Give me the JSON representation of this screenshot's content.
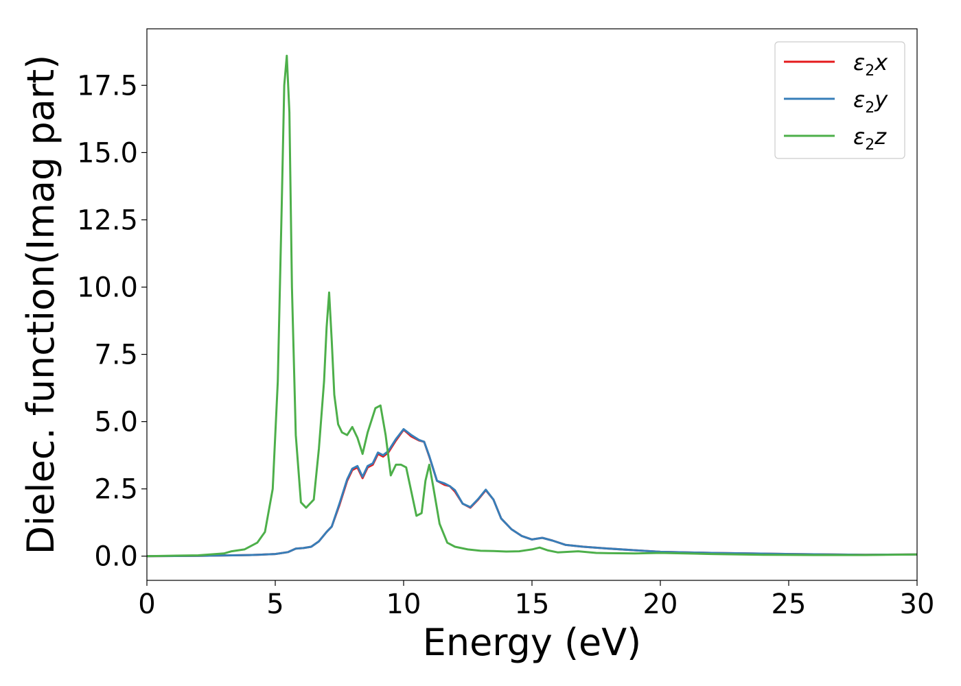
{
  "chart_data": {
    "type": "line",
    "title": "",
    "xlabel": "Energy (eV)",
    "ylabel": "Dielec. function(Imag part)",
    "xlim": [
      0,
      30
    ],
    "ylim": [
      -0.9,
      19.6
    ],
    "xticks": [
      0,
      5,
      10,
      15,
      20,
      25,
      30
    ],
    "xtick_labels": [
      "0",
      "5",
      "10",
      "15",
      "20",
      "25",
      "30"
    ],
    "yticks": [
      0,
      2.5,
      5,
      7.5,
      10,
      12.5,
      15,
      17.5
    ],
    "ytick_labels": [
      "0.0",
      "2.5",
      "5.0",
      "7.5",
      "10.0",
      "12.5",
      "15.0",
      "17.5"
    ],
    "grid": false,
    "legend_position": "upper right",
    "series": [
      {
        "name": "ε2x",
        "legend_base": "ε",
        "legend_sub": "2",
        "legend_suffix": "x",
        "color": "#e41a1c",
        "x": [
          0,
          2,
          4,
          4.6,
          5,
          5.5,
          5.8,
          6.1,
          6.4,
          6.7,
          7,
          7.2,
          7.5,
          7.8,
          8,
          8.2,
          8.4,
          8.6,
          8.8,
          9,
          9.2,
          9.4,
          9.7,
          10,
          10.3,
          10.6,
          10.8,
          11,
          11.3,
          11.6,
          11.8,
          12,
          12.3,
          12.6,
          12.9,
          13.2,
          13.5,
          13.8,
          14.2,
          14.6,
          15,
          15.4,
          15.8,
          16.3,
          17,
          18,
          19,
          20,
          22,
          25,
          28,
          30
        ],
        "y": [
          0,
          0.01,
          0.04,
          0.06,
          0.08,
          0.15,
          0.28,
          0.3,
          0.35,
          0.55,
          0.9,
          1.1,
          1.9,
          2.8,
          3.2,
          3.3,
          2.9,
          3.3,
          3.4,
          3.8,
          3.7,
          3.85,
          4.3,
          4.7,
          4.45,
          4.3,
          4.25,
          3.7,
          2.8,
          2.65,
          2.6,
          2.4,
          1.95,
          1.8,
          2.1,
          2.45,
          2.1,
          1.4,
          1.0,
          0.75,
          0.62,
          0.68,
          0.58,
          0.42,
          0.35,
          0.28,
          0.22,
          0.16,
          0.12,
          0.08,
          0.05,
          0.06
        ]
      },
      {
        "name": "ε2y",
        "legend_base": "ε",
        "legend_sub": "2",
        "legend_suffix": "y",
        "color": "#377eb8",
        "x": [
          0,
          2,
          4,
          4.6,
          5,
          5.5,
          5.8,
          6.1,
          6.4,
          6.7,
          7,
          7.2,
          7.5,
          7.8,
          8,
          8.2,
          8.4,
          8.6,
          8.8,
          9,
          9.2,
          9.4,
          9.7,
          10,
          10.3,
          10.6,
          10.8,
          11,
          11.3,
          11.6,
          11.8,
          12,
          12.3,
          12.6,
          12.9,
          13.2,
          13.5,
          13.8,
          14.2,
          14.6,
          15,
          15.4,
          15.8,
          16.3,
          17,
          18,
          19,
          20,
          22,
          25,
          28,
          30
        ],
        "y": [
          0,
          0.01,
          0.04,
          0.06,
          0.08,
          0.15,
          0.28,
          0.3,
          0.35,
          0.55,
          0.9,
          1.1,
          1.95,
          2.85,
          3.25,
          3.35,
          2.95,
          3.35,
          3.45,
          3.85,
          3.75,
          3.9,
          4.35,
          4.72,
          4.5,
          4.32,
          4.25,
          3.72,
          2.8,
          2.7,
          2.6,
          2.45,
          1.95,
          1.82,
          2.12,
          2.47,
          2.1,
          1.4,
          1.0,
          0.75,
          0.62,
          0.68,
          0.58,
          0.42,
          0.35,
          0.28,
          0.22,
          0.16,
          0.12,
          0.08,
          0.05,
          0.06
        ]
      },
      {
        "name": "ε2z",
        "legend_base": "ε",
        "legend_sub": "2",
        "legend_suffix": "z",
        "color": "#4daf4a",
        "x": [
          0,
          2,
          3,
          3.3,
          3.8,
          4.3,
          4.6,
          4.9,
          5.1,
          5.25,
          5.35,
          5.45,
          5.55,
          5.65,
          5.8,
          6.0,
          6.2,
          6.5,
          6.7,
          6.9,
          7.0,
          7.1,
          7.2,
          7.3,
          7.45,
          7.6,
          7.8,
          8.0,
          8.2,
          8.4,
          8.6,
          8.9,
          9.1,
          9.3,
          9.5,
          9.7,
          9.9,
          10.1,
          10.3,
          10.5,
          10.7,
          10.85,
          11.0,
          11.15,
          11.4,
          11.7,
          12,
          12.5,
          13,
          13.5,
          14,
          14.5,
          15,
          15.3,
          15.6,
          16,
          16.8,
          17.5,
          18,
          19,
          20,
          21,
          22,
          24,
          26,
          28,
          30
        ],
        "y": [
          0,
          0.03,
          0.1,
          0.18,
          0.25,
          0.5,
          0.9,
          2.5,
          6.5,
          13,
          17.5,
          18.6,
          16.5,
          10,
          4.5,
          2.0,
          1.8,
          2.1,
          4.0,
          6.5,
          8.5,
          9.8,
          8.0,
          6.0,
          4.9,
          4.6,
          4.5,
          4.8,
          4.4,
          3.8,
          4.6,
          5.5,
          5.6,
          4.5,
          3.0,
          3.4,
          3.4,
          3.3,
          2.4,
          1.5,
          1.6,
          2.8,
          3.4,
          2.6,
          1.2,
          0.5,
          0.35,
          0.25,
          0.2,
          0.19,
          0.17,
          0.18,
          0.25,
          0.32,
          0.22,
          0.14,
          0.18,
          0.12,
          0.11,
          0.1,
          0.12,
          0.1,
          0.08,
          0.05,
          0.04,
          0.04,
          0.06
        ]
      }
    ]
  }
}
